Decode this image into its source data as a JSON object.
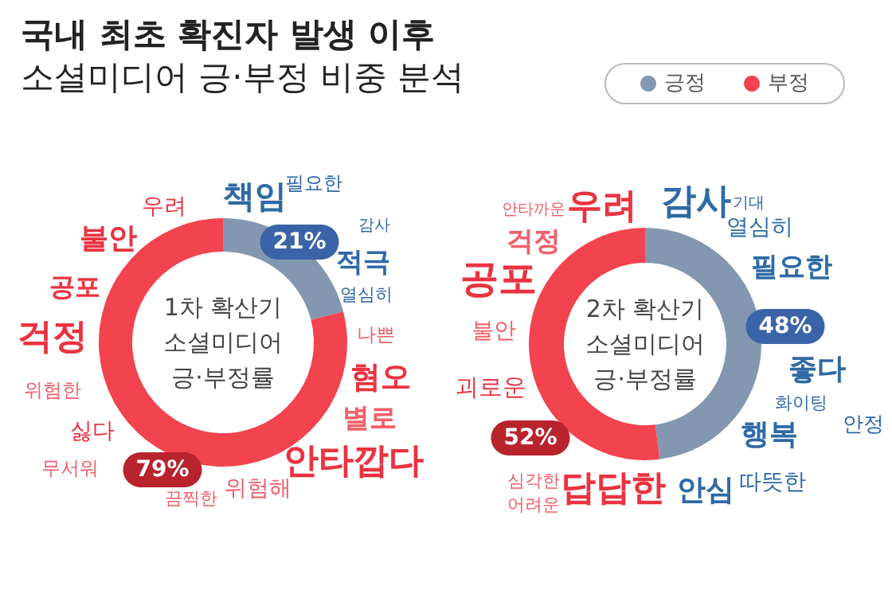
{
  "chart_data": {
    "type": "donut",
    "title": "국내 최초 확진자 발생 이후",
    "subtitle": "소셜미디어 긍·부정 비중 분석",
    "categories": [
      "긍정",
      "부정"
    ],
    "colors": [
      "#8497b0",
      "#f2434f"
    ],
    "legend": "top right",
    "series": [
      {
        "values": [
          21,
          79
        ],
        "value_labels": [
          "21%",
          "79%"
        ]
      },
      {
        "values": [
          48,
          52
        ],
        "value_labels": [
          "48%",
          "52%"
        ]
      }
    ],
    "annotations": [
      "1차 확산기\n소셜미디어\n긍·부정률",
      "우려",
      "책임",
      "필요한",
      "감사",
      "불안",
      "적극",
      "열심히",
      "공포",
      "나쁜",
      "걱정",
      "위험한",
      "혐오",
      "싫다",
      "별로",
      "무서워",
      "안타깝다",
      "끔찍한",
      "위험해",
      "2차 확산기\n소셜미디어\n긍·부정률",
      "안타까운",
      "우려",
      "감사",
      "기대",
      "걱정",
      "열심히",
      "공포",
      "필요한",
      "불안",
      "좋다",
      "괴로운",
      "화이팅",
      "안정",
      "행복",
      "심각한",
      "어려운",
      "답답한",
      "안심",
      "따뜻한"
    ]
  }
}
